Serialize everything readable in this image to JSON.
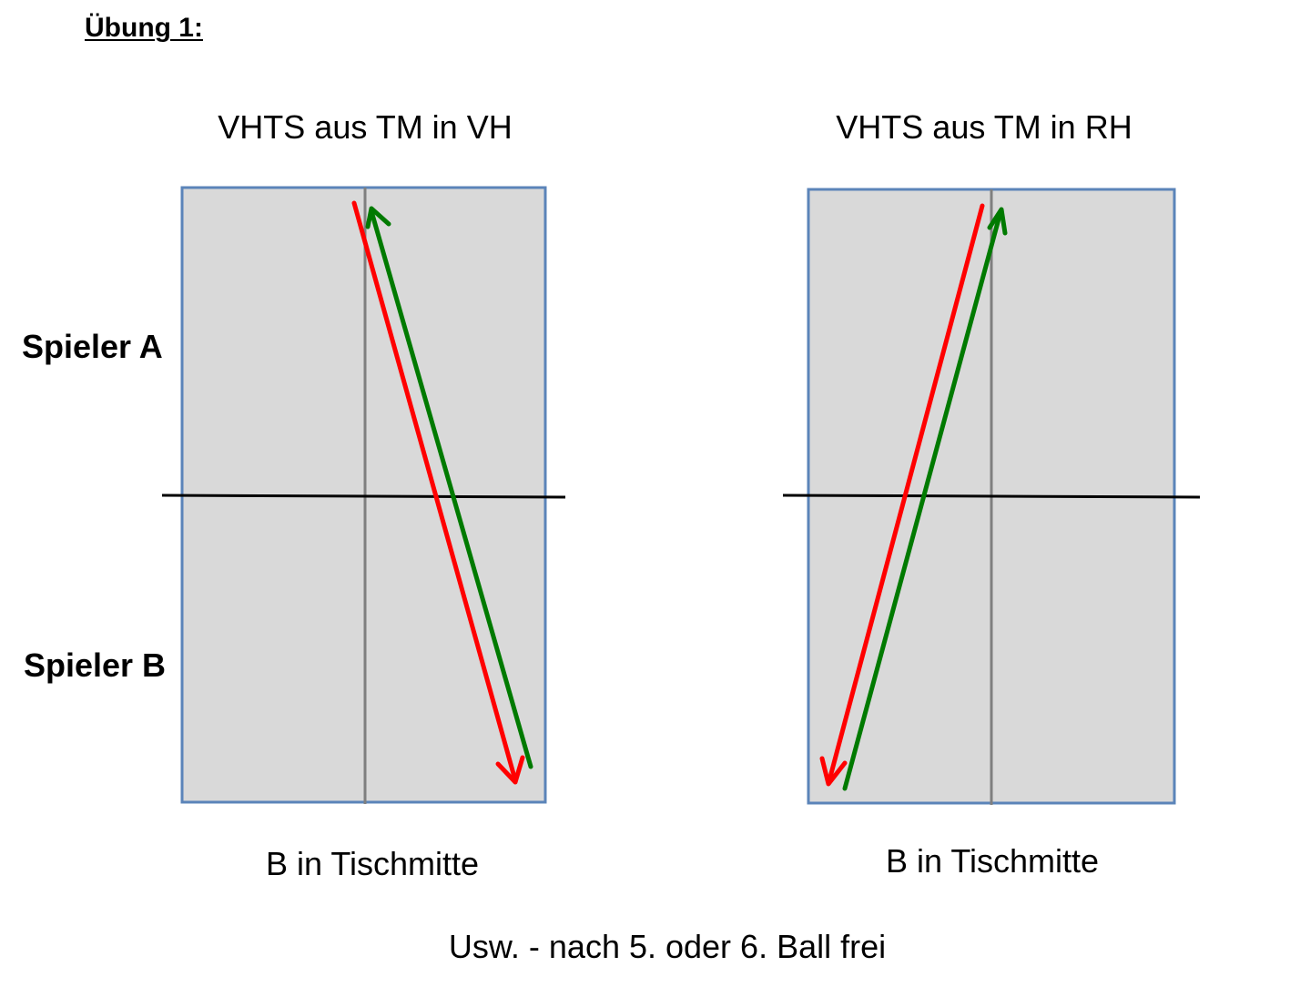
{
  "heading": "Übung 1:",
  "diagrams": [
    {
      "title": "VHTS aus TM in VH",
      "caption": "B in Tischmitte"
    },
    {
      "title": "VHTS aus TM in RH",
      "caption": "B in Tischmitte"
    }
  ],
  "player_a_label": "Spieler A",
  "player_b_label": "Spieler B",
  "footer": "Usw. - nach 5. oder 6. Ball frei",
  "colors": {
    "table_fill": "#d9d9d9",
    "table_border": "#5b84b9",
    "center_line": "#7f7f7f",
    "net": "#000000",
    "arrow_red": "#ff0000",
    "arrow_green": "#007a00"
  },
  "icons": {
    "red_arrow": "arrow-icon",
    "green_arrow": "arrow-icon"
  }
}
